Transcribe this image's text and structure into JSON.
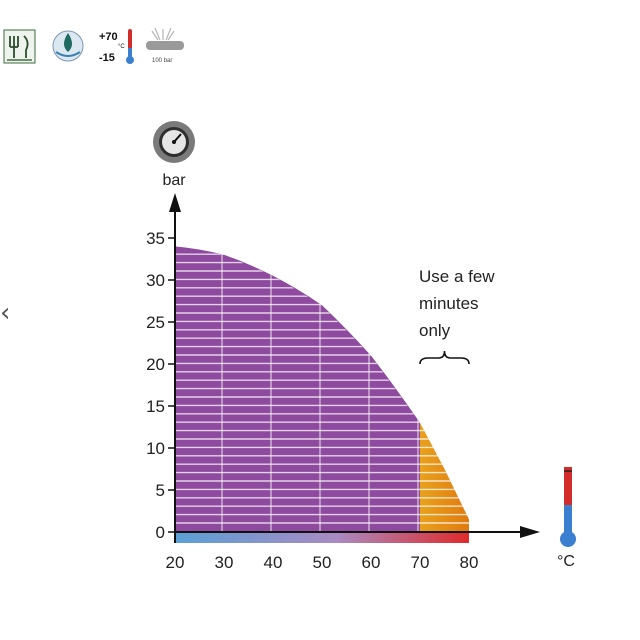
{
  "nav": {
    "prev_icon": "chevron-left-icon",
    "prev_glyph": "‹"
  },
  "badges": {
    "food_icon": "food-safe-icon",
    "water_icon": "water-drop-icon",
    "temp_icon": "temperature-range-icon",
    "temp_max": "+70",
    "temp_unit": "°C",
    "temp_min": "-15",
    "pressure_icon": "pressure-washer-icon",
    "pressure_label": "100 bar"
  },
  "chart_data": {
    "type": "area",
    "xlabel": "°C",
    "ylabel": "bar",
    "x_ticks": [
      "20",
      "30",
      "40",
      "50",
      "60",
      "70",
      "80"
    ],
    "y_ticks": [
      "0",
      "5",
      "10",
      "15",
      "20",
      "25",
      "30",
      "35"
    ],
    "xlim": [
      20,
      80
    ],
    "ylim": [
      0,
      35
    ],
    "series": [
      {
        "x": [
          20,
          30,
          40,
          50,
          60,
          70
        ],
        "y": [
          34,
          33,
          30.5,
          27,
          21,
          13
        ],
        "color": "#8e4a9e"
      },
      {
        "x": [
          70,
          75,
          80
        ],
        "y": [
          13,
          7.5,
          1.5
        ],
        "color": "#e8a11c"
      }
    ],
    "annotation": {
      "text_lines": [
        "Use a few",
        "minutes",
        "only"
      ],
      "x_start": 70,
      "x_end": 80
    },
    "axis_color_bar": {
      "colors": [
        "#5aa0d6",
        "#a98bc2",
        "#e04040"
      ]
    }
  }
}
